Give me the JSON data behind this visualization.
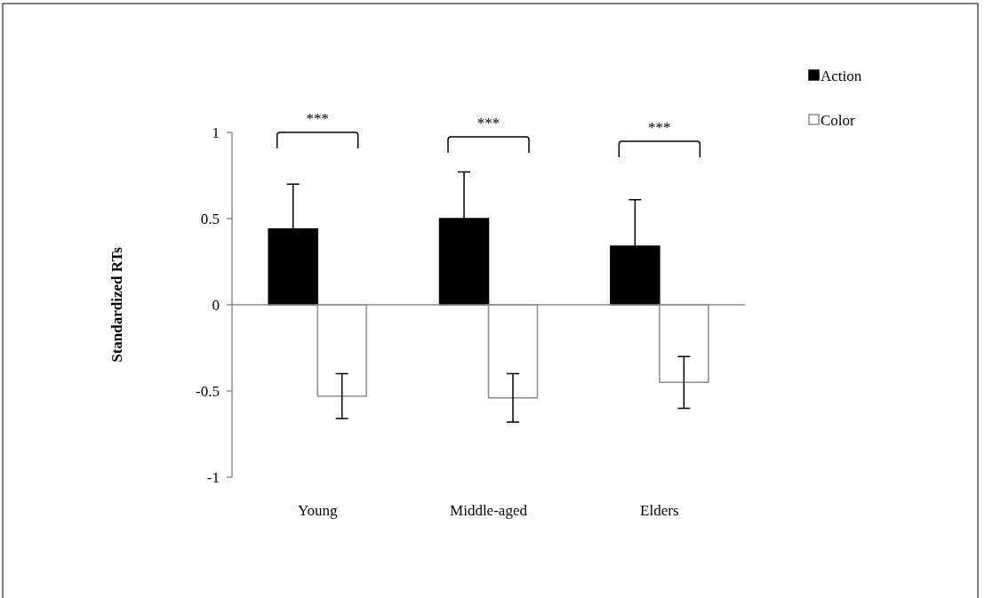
{
  "chart_data": {
    "type": "bar",
    "ylabel": "Standardized RTs",
    "categories": [
      "Young",
      "Middle-aged",
      "Elders"
    ],
    "series": [
      {
        "name": "Action",
        "color": "#000000",
        "values": [
          0.44,
          0.5,
          0.34
        ],
        "errors": [
          0.26,
          0.27,
          0.27
        ]
      },
      {
        "name": "Color",
        "color": "#ffffff",
        "values": [
          -0.53,
          -0.54,
          -0.45
        ],
        "errors": [
          0.13,
          0.14,
          0.15
        ]
      }
    ],
    "ylim": [
      -1,
      1
    ],
    "yticks": [
      -1,
      -0.5,
      0,
      0.5,
      1
    ],
    "legend": "top right",
    "annotations": [
      "***",
      "***",
      "***"
    ]
  }
}
